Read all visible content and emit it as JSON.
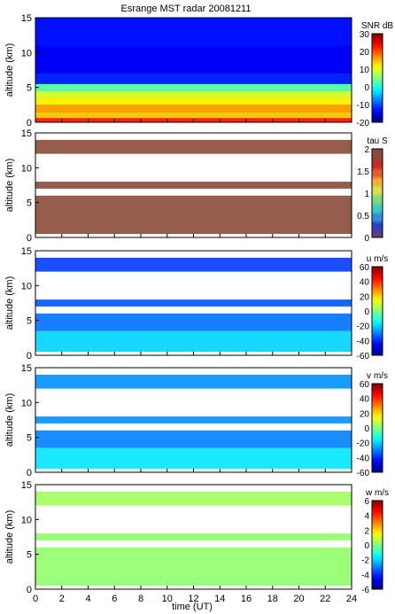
{
  "title": "Esrange MST radar 20081211",
  "xlabel": "time (UT)",
  "x_ticks": [
    "0",
    "2",
    "4",
    "6",
    "8",
    "10",
    "12",
    "14",
    "16",
    "18",
    "20",
    "22",
    "24"
  ],
  "chart_data": [
    {
      "type": "heatmap",
      "ylabel": "altitude (km)",
      "xlim": [
        0,
        24
      ],
      "ylim": [
        0,
        15
      ],
      "y_ticks": [
        "0",
        "5",
        "10",
        "15"
      ],
      "colorbar": {
        "label": "SNR dB",
        "range": [
          -20,
          30
        ],
        "ticks": [
          "30",
          "20",
          "10",
          "0",
          "-10",
          "-20"
        ]
      },
      "layers": [
        {
          "alt_range": [
            0,
            0.6
          ],
          "value": 22
        },
        {
          "alt_range": [
            0.6,
            1.5
          ],
          "value": 14
        },
        {
          "alt_range": [
            1.5,
            2.5
          ],
          "value": 16
        },
        {
          "alt_range": [
            2.5,
            3.5
          ],
          "value": 12
        },
        {
          "alt_range": [
            3.5,
            4.5
          ],
          "value": 9
        },
        {
          "alt_range": [
            4.5,
            5.5
          ],
          "value": 3
        },
        {
          "alt_range": [
            5.5,
            7.0
          ],
          "value": -12
        },
        {
          "alt_range": [
            7.0,
            11.0
          ],
          "value": -14
        },
        {
          "alt_range": [
            11.0,
            15.0
          ],
          "value": -13
        }
      ]
    },
    {
      "type": "heatmap",
      "ylabel": "altitude (km)",
      "xlim": [
        0,
        24
      ],
      "ylim": [
        0,
        15
      ],
      "y_ticks": [
        "0",
        "5",
        "10",
        "15"
      ],
      "colorbar": {
        "label": "tau S",
        "range": [
          0,
          2
        ],
        "ticks": [
          "2",
          "1.5",
          "1",
          "0.5",
          "0"
        ]
      },
      "layers": [
        {
          "alt_range": [
            0.5,
            6.0
          ],
          "value": 1.95
        },
        {
          "alt_range": [
            7.0,
            8.0
          ],
          "value": 1.95
        },
        {
          "alt_range": [
            12.0,
            14.0
          ],
          "value": 1.95
        }
      ]
    },
    {
      "type": "heatmap",
      "ylabel": "altitude (km)",
      "xlim": [
        0,
        24
      ],
      "ylim": [
        0,
        15
      ],
      "y_ticks": [
        "0",
        "5",
        "10",
        "15"
      ],
      "colorbar": {
        "label": "u m/s",
        "range": [
          -60,
          60
        ],
        "ticks": [
          "60",
          "40",
          "20",
          "0",
          "-20",
          "-40",
          "-60"
        ]
      },
      "layers": [
        {
          "alt_range": [
            0.5,
            3.5
          ],
          "value": -20
        },
        {
          "alt_range": [
            3.5,
            6.0
          ],
          "value": -32
        },
        {
          "alt_range": [
            7.0,
            8.0
          ],
          "value": -35
        },
        {
          "alt_range": [
            12.0,
            14.0
          ],
          "value": -38
        }
      ]
    },
    {
      "type": "heatmap",
      "ylabel": "altitude (km)",
      "xlim": [
        0,
        24
      ],
      "ylim": [
        0,
        15
      ],
      "y_ticks": [
        "0",
        "5",
        "10",
        "15"
      ],
      "colorbar": {
        "label": "v m/s",
        "range": [
          -60,
          60
        ],
        "ticks": [
          "60",
          "40",
          "20",
          "0",
          "-20",
          "-40",
          "-60"
        ]
      },
      "layers": [
        {
          "alt_range": [
            0.5,
            3.5
          ],
          "value": -18
        },
        {
          "alt_range": [
            3.5,
            6.0
          ],
          "value": -30
        },
        {
          "alt_range": [
            7.0,
            8.0
          ],
          "value": -28
        },
        {
          "alt_range": [
            12.0,
            14.0
          ],
          "value": -28
        }
      ]
    },
    {
      "type": "heatmap",
      "ylabel": "altitude (km)",
      "xlim": [
        0,
        24
      ],
      "ylim": [
        0,
        15
      ],
      "y_ticks": [
        "0",
        "5",
        "10",
        "15"
      ],
      "colorbar": {
        "label": "w m/s",
        "range": [
          -6,
          6
        ],
        "ticks": [
          "6",
          "4",
          "2",
          "0",
          "-2",
          "-4",
          "-6"
        ]
      },
      "layers": [
        {
          "alt_range": [
            0.5,
            6.0
          ],
          "value": 0.2
        },
        {
          "alt_range": [
            7.0,
            8.0
          ],
          "value": 0.2
        },
        {
          "alt_range": [
            12.0,
            14.0
          ],
          "value": 0.4
        }
      ]
    }
  ]
}
